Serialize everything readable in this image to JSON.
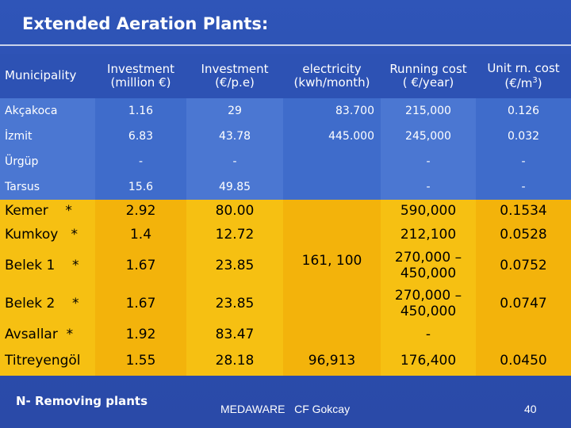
{
  "slide": {
    "title": "Extended Aeration Plants:",
    "footer_note": "N- Removing plants",
    "footer_author": "MEDAWARE   CF Gokcay",
    "page_number": "40"
  },
  "table": {
    "headers": {
      "municipality": "Municipality",
      "investment_million_l1": "Investment",
      "investment_million_l2": "(million €)",
      "investment_pe_l1": "Investment",
      "investment_pe_l2": "(€/p.e)",
      "electricity_l1": "electricity",
      "electricity_l2": "(kwh/month)",
      "running_cost_l1": "Running cost",
      "running_cost_l2": "( €/year)",
      "unit_cost_l1": "Unit rn. cost",
      "unit_cost_l2": "(€/m",
      "unit_cost_sup": "3",
      "unit_cost_close": ")"
    },
    "rows": [
      {
        "name": "Akçakoca",
        "inv_m": "1.16",
        "inv_pe": "29",
        "elec": "83.700",
        "run": "215,000",
        "unit": "0.126"
      },
      {
        "name": "İzmit",
        "inv_m": "6.83",
        "inv_pe": "43.78",
        "elec": "445.000",
        "run": "245,000",
        "unit": "0.032"
      },
      {
        "name": "Ürgüp",
        "inv_m": "-",
        "inv_pe": "-",
        "elec": "",
        "run": "-",
        "unit": "-"
      },
      {
        "name": "Tarsus",
        "inv_m": "15.6",
        "inv_pe": "49.85",
        "elec": "",
        "run": "-",
        "unit": "-"
      },
      {
        "name": "Kemer    *",
        "inv_m": "2.92",
        "inv_pe": "80.00",
        "run": "590,000",
        "unit": "0.1534"
      },
      {
        "name": "Kumkoy   *",
        "inv_m": "1.4",
        "inv_pe": "12.72",
        "run": "212,100",
        "unit": "0.0528"
      },
      {
        "name": "Belek 1    *",
        "inv_m": "1.67",
        "inv_pe": "23.85",
        "run_l1": "270,000 –",
        "run_l2": "450,000",
        "unit": "0.0752"
      },
      {
        "name": "Belek 2    *",
        "inv_m": "1.67",
        "inv_pe": "23.85",
        "run_l1": "270,000 –",
        "run_l2": "450,000",
        "unit": "0.0747"
      },
      {
        "name": "Avsallar  *",
        "inv_m": "1.92",
        "inv_pe": "83.47",
        "run": "-",
        "unit": ""
      },
      {
        "name": "Titreyengöl",
        "inv_m": "1.55",
        "inv_pe": "28.18",
        "elec": "96,913",
        "run": "176,400",
        "unit": "0.0450"
      }
    ],
    "merged_electricity": "161, 100"
  },
  "colors": {
    "background": "#2b4fb0",
    "blue_row": "#4b77d2",
    "yellow_row": "#f6c012"
  }
}
